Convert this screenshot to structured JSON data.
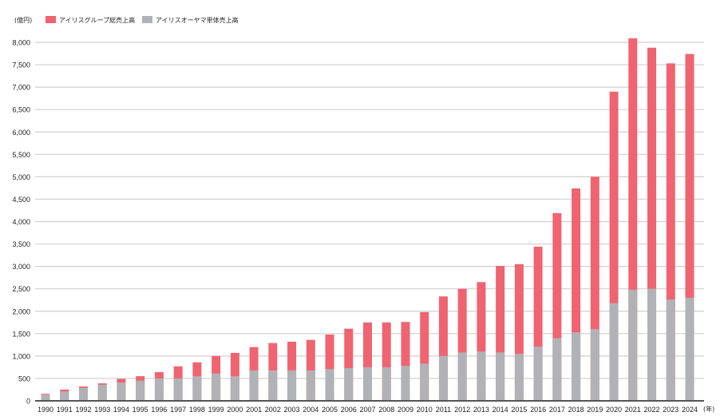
{
  "chart_data": {
    "type": "bar",
    "stacked": "overlay",
    "unit_label": "(億円)",
    "x_unit_label": "(年)",
    "legend_position": "top-left",
    "grid": true,
    "ylim": [
      0,
      8000
    ],
    "yticks": [
      "0",
      "500",
      "1,000",
      "1,500",
      "2,000",
      "2,500",
      "3,000",
      "3,500",
      "4,000",
      "4,500",
      "5,000",
      "5,500",
      "6,000",
      "6,500",
      "7,000",
      "7,500",
      "8,000"
    ],
    "categories": [
      "1990",
      "1991",
      "1992",
      "1993",
      "1994",
      "1995",
      "1996",
      "1997",
      "1998",
      "1999",
      "2000",
      "2001",
      "2002",
      "2003",
      "2004",
      "2005",
      "2006",
      "2007",
      "2008",
      "2009",
      "2010",
      "2011",
      "2012",
      "2013",
      "2014",
      "2015",
      "2016",
      "2017",
      "2018",
      "2019",
      "2020",
      "2021",
      "2022",
      "2023",
      "2024"
    ],
    "series": [
      {
        "name": "アイリスグループ総売上高",
        "color": "#ef6470",
        "values": [
          155,
          250,
          320,
          390,
          490,
          550,
          640,
          770,
          860,
          1000,
          1070,
          1200,
          1290,
          1320,
          1360,
          1480,
          1610,
          1750,
          1750,
          1760,
          1980,
          2330,
          2500,
          2650,
          3010,
          3050,
          3440,
          4190,
          4740,
          5000,
          6900,
          8090,
          7880,
          7530,
          7740
        ]
      },
      {
        "name": "アイリスオーヤマ単体売上高",
        "color": "#b1b2b6",
        "values": [
          140,
          210,
          290,
          360,
          410,
          450,
          500,
          500,
          550,
          610,
          550,
          680,
          680,
          680,
          680,
          710,
          730,
          750,
          750,
          780,
          830,
          1000,
          1080,
          1100,
          1080,
          1050,
          1210,
          1400,
          1530,
          1600,
          2180,
          2480,
          2500,
          2260,
          2300
        ]
      }
    ]
  }
}
